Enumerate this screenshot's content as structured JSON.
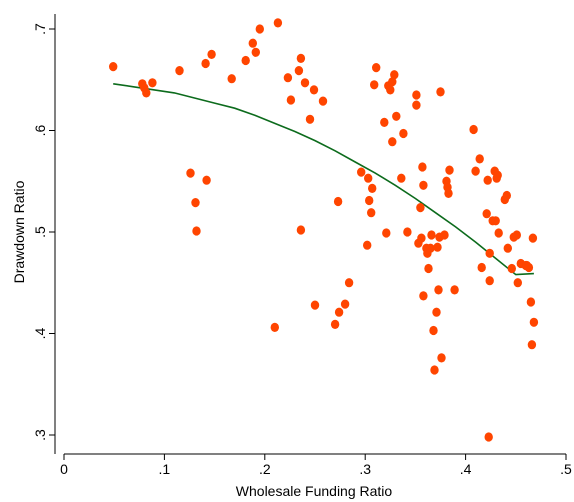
{
  "chart_data": {
    "type": "scatter",
    "xlabel": "Wholesale Funding Ratio",
    "ylabel": "Drawdown Ratio",
    "xlim": [
      0,
      0.5
    ],
    "ylim": [
      0.3,
      0.7
    ],
    "xticks": [
      0,
      0.1,
      0.2,
      0.3,
      0.4,
      0.5
    ],
    "xtick_labels": [
      "0",
      ".1",
      ".2",
      ".3",
      ".4",
      ".5"
    ],
    "yticks": [
      0.3,
      0.4,
      0.5,
      0.6,
      0.7
    ],
    "ytick_labels": [
      ".3",
      ".4",
      ".5",
      ".6",
      ".7"
    ],
    "grid": false,
    "legend": "none",
    "colors": {
      "points": "#ff4500",
      "fit_line": "#0c6b1c",
      "axis": "#000000",
      "background": "#ffffff"
    },
    "series": [
      {
        "type": "scatter",
        "points": [
          [
            0.049,
            0.663
          ],
          [
            0.078,
            0.646
          ],
          [
            0.08,
            0.642
          ],
          [
            0.082,
            0.637
          ],
          [
            0.088,
            0.647
          ],
          [
            0.115,
            0.659
          ],
          [
            0.126,
            0.558
          ],
          [
            0.131,
            0.529
          ],
          [
            0.132,
            0.501
          ],
          [
            0.141,
            0.666
          ],
          [
            0.142,
            0.551
          ],
          [
            0.147,
            0.675
          ],
          [
            0.167,
            0.651
          ],
          [
            0.181,
            0.669
          ],
          [
            0.188,
            0.686
          ],
          [
            0.191,
            0.677
          ],
          [
            0.195,
            0.7
          ],
          [
            0.21,
            0.406
          ],
          [
            0.213,
            0.706
          ],
          [
            0.223,
            0.652
          ],
          [
            0.226,
            0.63
          ],
          [
            0.234,
            0.659
          ],
          [
            0.236,
            0.671
          ],
          [
            0.236,
            0.502
          ],
          [
            0.24,
            0.647
          ],
          [
            0.245,
            0.611
          ],
          [
            0.249,
            0.64
          ],
          [
            0.25,
            0.428
          ],
          [
            0.258,
            0.629
          ],
          [
            0.27,
            0.409
          ],
          [
            0.273,
            0.53
          ],
          [
            0.274,
            0.421
          ],
          [
            0.28,
            0.429
          ],
          [
            0.284,
            0.45
          ],
          [
            0.296,
            0.559
          ],
          [
            0.302,
            0.487
          ],
          [
            0.303,
            0.553
          ],
          [
            0.304,
            0.531
          ],
          [
            0.306,
            0.519
          ],
          [
            0.307,
            0.543
          ],
          [
            0.309,
            0.645
          ],
          [
            0.311,
            0.662
          ],
          [
            0.319,
            0.608
          ],
          [
            0.321,
            0.499
          ],
          [
            0.323,
            0.644
          ],
          [
            0.325,
            0.64
          ],
          [
            0.327,
            0.589
          ],
          [
            0.327,
            0.648
          ],
          [
            0.329,
            0.655
          ],
          [
            0.331,
            0.614
          ],
          [
            0.336,
            0.553
          ],
          [
            0.338,
            0.597
          ],
          [
            0.342,
            0.5
          ],
          [
            0.351,
            0.635
          ],
          [
            0.351,
            0.625
          ],
          [
            0.353,
            0.489
          ],
          [
            0.355,
            0.524
          ],
          [
            0.356,
            0.494
          ],
          [
            0.357,
            0.564
          ],
          [
            0.358,
            0.546
          ],
          [
            0.358,
            0.437
          ],
          [
            0.361,
            0.484
          ],
          [
            0.362,
            0.479
          ],
          [
            0.363,
            0.464
          ],
          [
            0.365,
            0.484
          ],
          [
            0.366,
            0.497
          ],
          [
            0.368,
            0.403
          ],
          [
            0.369,
            0.364
          ],
          [
            0.371,
            0.421
          ],
          [
            0.372,
            0.485
          ],
          [
            0.373,
            0.443
          ],
          [
            0.374,
            0.495
          ],
          [
            0.375,
            0.638
          ],
          [
            0.376,
            0.376
          ],
          [
            0.379,
            0.497
          ],
          [
            0.381,
            0.55
          ],
          [
            0.382,
            0.544
          ],
          [
            0.383,
            0.538
          ],
          [
            0.384,
            0.561
          ],
          [
            0.389,
            0.443
          ],
          [
            0.408,
            0.601
          ],
          [
            0.41,
            0.56
          ],
          [
            0.414,
            0.572
          ],
          [
            0.416,
            0.465
          ],
          [
            0.421,
            0.518
          ],
          [
            0.422,
            0.551
          ],
          [
            0.423,
            0.298
          ],
          [
            0.424,
            0.479
          ],
          [
            0.424,
            0.452
          ],
          [
            0.427,
            0.511
          ],
          [
            0.429,
            0.56
          ],
          [
            0.43,
            0.511
          ],
          [
            0.431,
            0.553
          ],
          [
            0.432,
            0.556
          ],
          [
            0.433,
            0.499
          ],
          [
            0.439,
            0.532
          ],
          [
            0.441,
            0.536
          ],
          [
            0.442,
            0.484
          ],
          [
            0.446,
            0.464
          ],
          [
            0.448,
            0.495
          ],
          [
            0.451,
            0.497
          ],
          [
            0.452,
            0.45
          ],
          [
            0.455,
            0.469
          ],
          [
            0.46,
            0.467
          ],
          [
            0.461,
            0.467
          ],
          [
            0.463,
            0.465
          ],
          [
            0.465,
            0.431
          ],
          [
            0.466,
            0.389
          ],
          [
            0.467,
            0.494
          ],
          [
            0.468,
            0.411
          ]
        ]
      },
      {
        "type": "line",
        "x": [
          0.049,
          0.07,
          0.09,
          0.11,
          0.13,
          0.15,
          0.17,
          0.19,
          0.21,
          0.23,
          0.25,
          0.27,
          0.29,
          0.31,
          0.33,
          0.35,
          0.37,
          0.39,
          0.41,
          0.43,
          0.45,
          0.468
        ],
        "y": [
          0.646,
          0.643,
          0.64,
          0.637,
          0.632,
          0.627,
          0.622,
          0.615,
          0.607,
          0.599,
          0.59,
          0.58,
          0.569,
          0.558,
          0.546,
          0.533,
          0.519,
          0.505,
          0.49,
          0.474,
          0.458,
          0.459
        ]
      }
    ]
  }
}
